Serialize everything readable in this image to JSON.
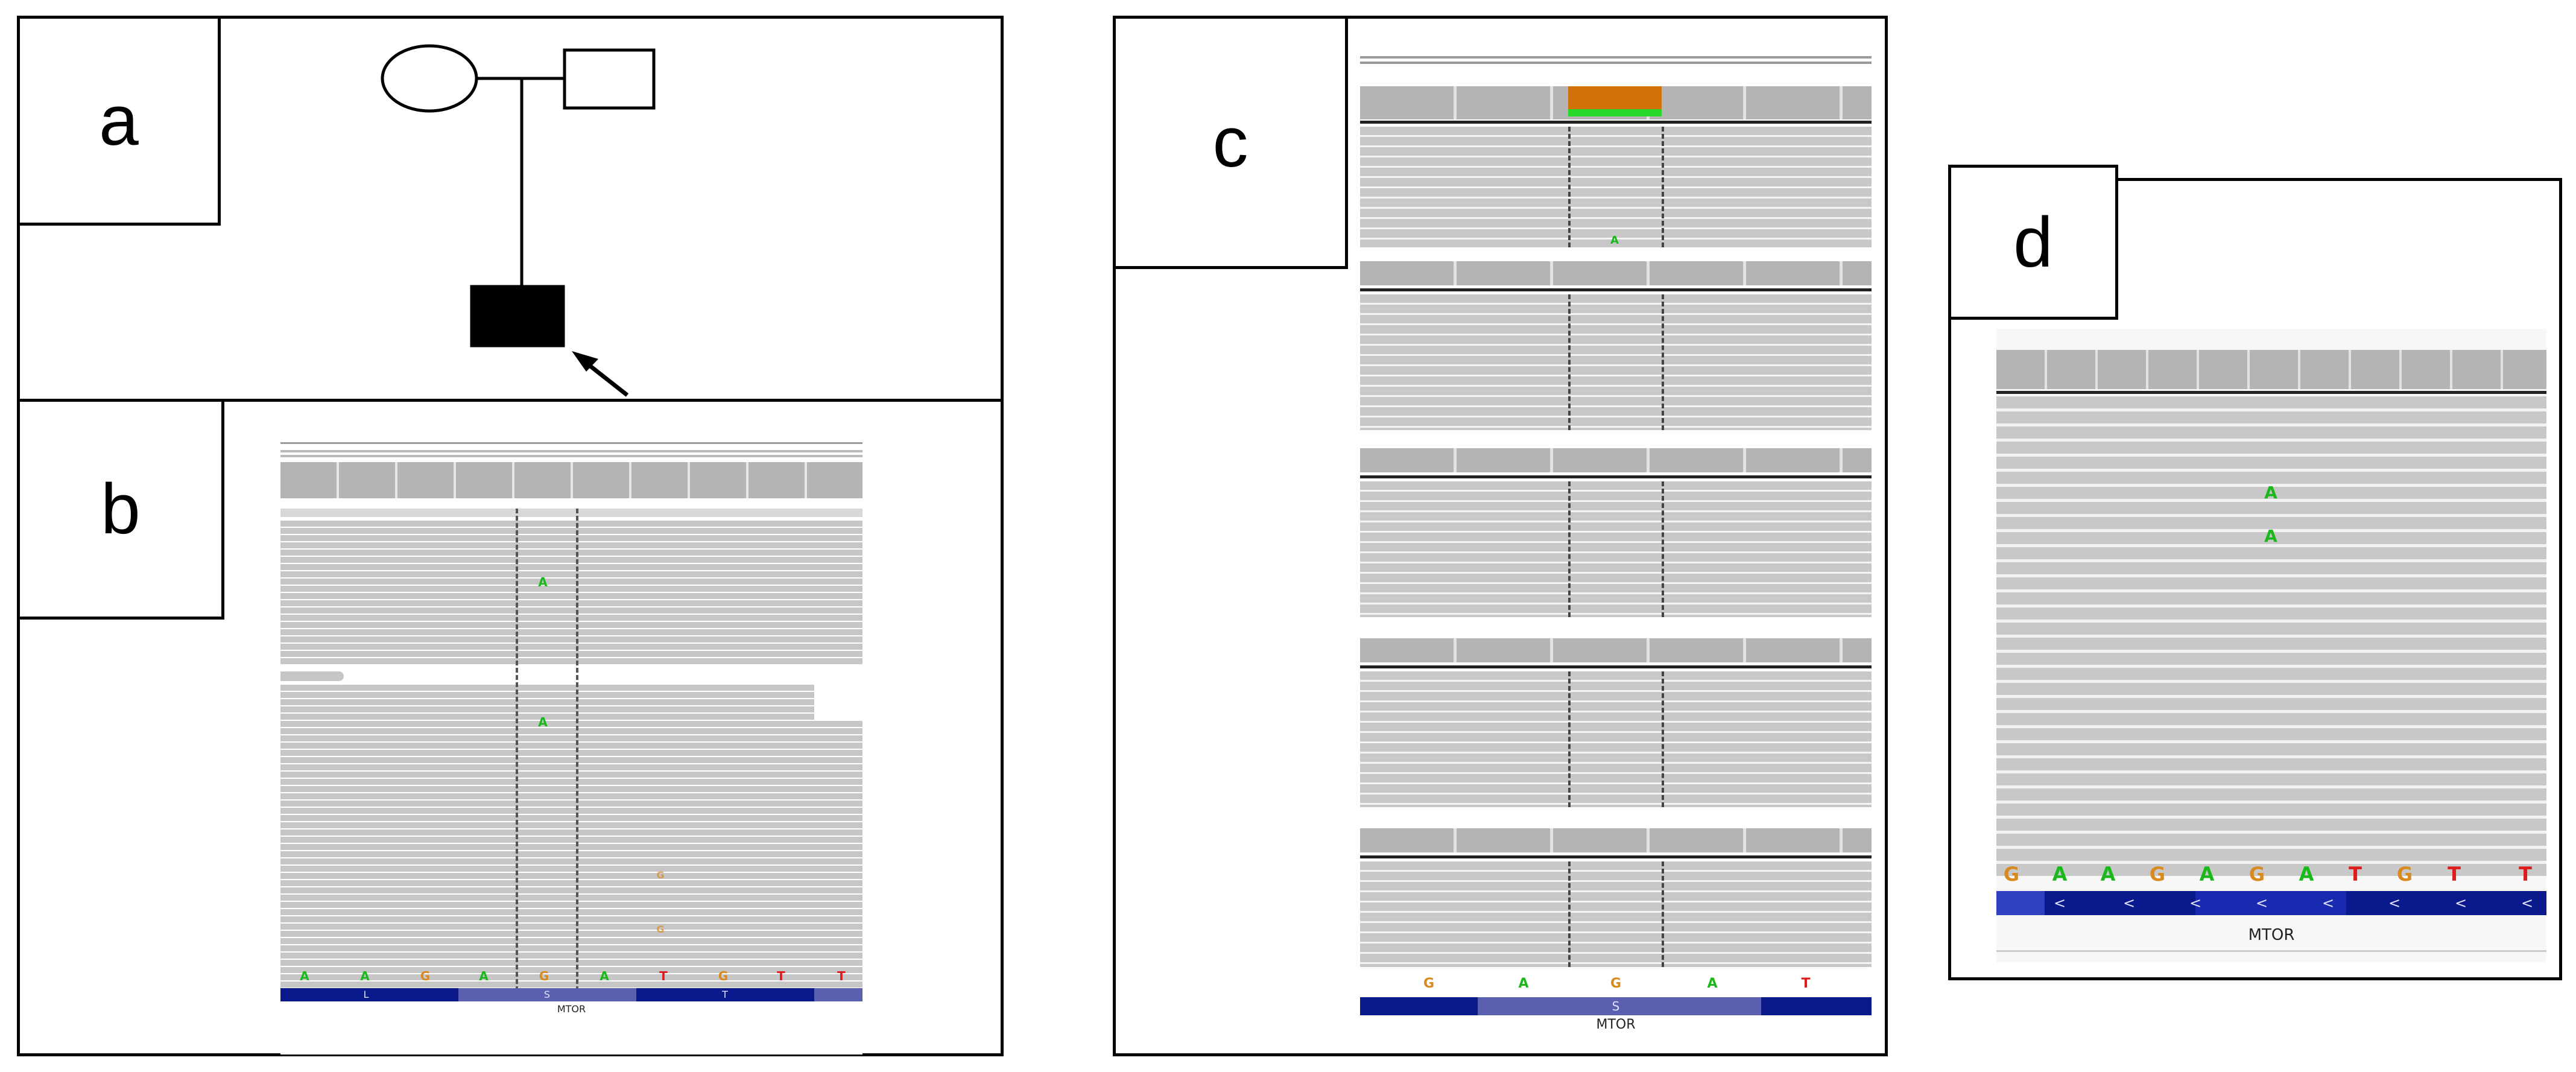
{
  "panels": {
    "a": {
      "label": "a"
    },
    "b": {
      "label": "b",
      "mismatches": [
        "A",
        "A",
        "G",
        "G"
      ],
      "ref_seq": [
        "A",
        "A",
        "G",
        "A",
        "G",
        "A",
        "T",
        "G",
        "T",
        "T"
      ],
      "aa": [
        "L",
        "S",
        "T"
      ],
      "gene": "MTOR"
    },
    "c": {
      "label": "c",
      "mismatch": "A",
      "ref_seq": [
        "G",
        "A",
        "G",
        "A",
        "T"
      ],
      "aa": [
        "S"
      ],
      "gene": "MTOR"
    },
    "d": {
      "label": "d",
      "mismatches": [
        "A",
        "A"
      ],
      "ref_seq": [
        "G",
        "A",
        "A",
        "G",
        "A",
        "G",
        "A",
        "T",
        "G",
        "T",
        "T"
      ],
      "strand_arrows": [
        "<",
        "<",
        "<",
        "<",
        "<",
        "<",
        "<",
        "<"
      ],
      "gene": "MTOR"
    }
  },
  "colors": {
    "base_A": "#1bb81b",
    "base_G": "#d98a1f",
    "base_T": "#dd1c1c",
    "base_C": "#1c3ddd",
    "read_gray": "#c8c8c8",
    "coverage_gray": "#b4b4b4",
    "coverage_highlight": "#d2700a",
    "aa_dark": "#0a1a8c",
    "aa_light": "#5a5fb0"
  }
}
